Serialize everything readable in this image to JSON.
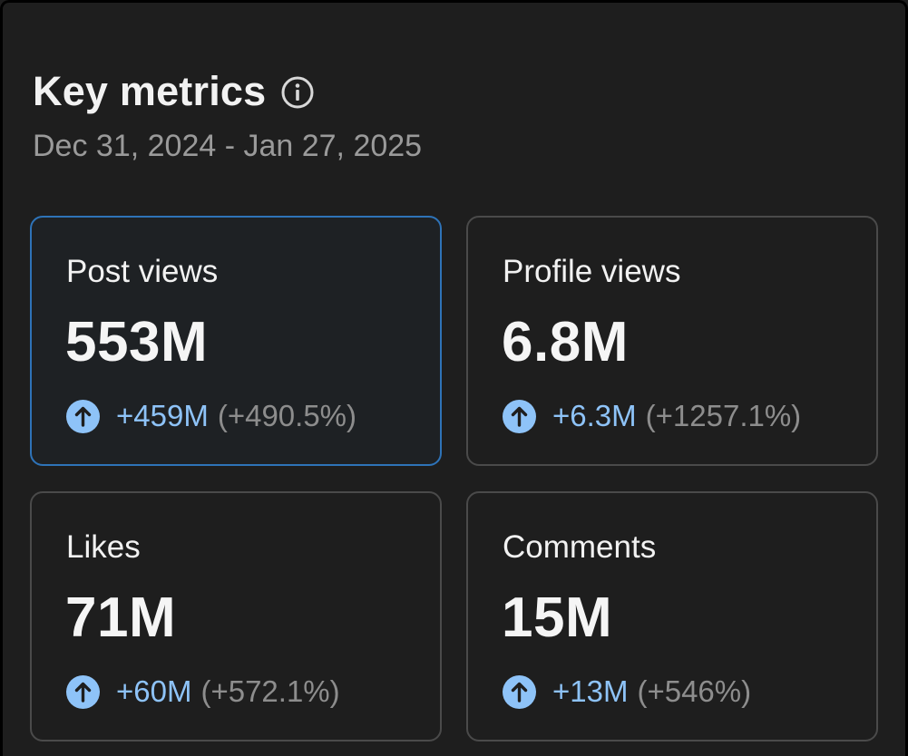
{
  "header": {
    "title": "Key metrics",
    "date_range": "Dec 31, 2024 - Jan 27, 2025",
    "info_icon": "info-circle-icon"
  },
  "colors": {
    "background": "#1e1e1e",
    "accent_blue": "#8ec3f8",
    "selected_border": "#2e73b8",
    "muted_text": "#8d8d8d"
  },
  "metrics": [
    {
      "label": "Post views",
      "value": "553M",
      "delta": "+459M",
      "pct": "(+490.5%)",
      "selected": true,
      "trend_icon": "arrow-up-circle-icon"
    },
    {
      "label": "Profile views",
      "value": "6.8M",
      "delta": "+6.3M",
      "pct": "(+1257.1%)",
      "selected": false,
      "trend_icon": "arrow-up-circle-icon"
    },
    {
      "label": "Likes",
      "value": "71M",
      "delta": "+60M",
      "pct": "(+572.1%)",
      "selected": false,
      "trend_icon": "arrow-up-circle-icon"
    },
    {
      "label": "Comments",
      "value": "15M",
      "delta": "+13M",
      "pct": "(+546%)",
      "selected": false,
      "trend_icon": "arrow-up-circle-icon"
    }
  ]
}
